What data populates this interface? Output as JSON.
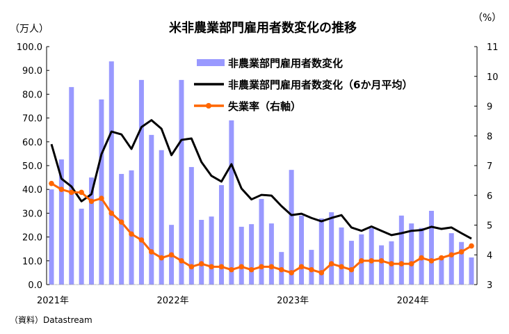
{
  "chart_data": {
    "type": "bar+line",
    "title": "米非農業部門雇用者数変化の推移",
    "left_unit": "（万人）",
    "right_unit": "（%）",
    "source": "（資料）Datastream",
    "ylim_left": [
      0,
      100
    ],
    "ylim_right": [
      3,
      11
    ],
    "left_ticks": [
      "0.0",
      "10.0",
      "20.0",
      "30.0",
      "40.0",
      "50.0",
      "60.0",
      "70.0",
      "80.0",
      "90.0",
      "100.0"
    ],
    "right_ticks": [
      "3",
      "4",
      "5",
      "6",
      "7",
      "8",
      "9",
      "10",
      "11"
    ],
    "x_labels": [
      {
        "index": 0,
        "label": "2021年"
      },
      {
        "index": 12,
        "label": "2022年"
      },
      {
        "index": 24,
        "label": "2023年"
      },
      {
        "index": 36,
        "label": "2024年"
      }
    ],
    "x_range": "2021-01 to 2024-07 (monthly)",
    "legend_position": "top-center",
    "series": [
      {
        "name": "非農業部門雇用者数変化",
        "type": "bar",
        "axis": "left",
        "color": "#9999ff",
        "values": [
          40.0,
          52.6,
          83.0,
          31.9,
          45.0,
          77.8,
          93.8,
          46.5,
          48.0,
          86.0,
          62.9,
          56.5,
          25.1,
          86.0,
          49.4,
          27.2,
          28.6,
          41.8,
          69.0,
          24.3,
          25.4,
          36.0,
          25.7,
          13.7,
          48.2,
          29.0,
          14.6,
          27.8,
          30.4,
          24.0,
          18.4,
          21.1,
          23.7,
          16.5,
          18.2,
          29.0,
          25.7,
          23.8,
          31.0,
          12.0,
          21.6,
          17.9,
          11.4
        ]
      },
      {
        "name": "非農業部門雇用者数変化（6か月平均）",
        "type": "line",
        "axis": "left",
        "color": "#000000",
        "values": [
          59.0,
          44.5,
          41.2,
          35.0,
          38.0,
          54.8,
          64.3,
          63.1,
          57.0,
          66.2,
          69.1,
          65.5,
          54.4,
          60.8,
          61.4,
          51.5,
          45.7,
          43.3,
          50.6,
          40.4,
          35.8,
          37.7,
          37.4,
          33.0,
          29.2,
          29.8,
          28.0,
          26.6,
          28.0,
          29.2,
          24.0,
          22.6,
          24.4,
          22.6,
          20.8,
          21.6,
          22.6,
          22.9,
          24.3,
          23.4,
          24.0,
          21.6,
          19.3
        ]
      },
      {
        "name": "失業率（右軸）",
        "type": "line-markers",
        "axis": "right",
        "color": "#ff6600",
        "values": [
          6.4,
          6.2,
          6.1,
          6.1,
          5.8,
          5.9,
          5.4,
          5.1,
          4.7,
          4.5,
          4.1,
          3.9,
          4.0,
          3.8,
          3.6,
          3.7,
          3.6,
          3.6,
          3.5,
          3.6,
          3.5,
          3.6,
          3.6,
          3.5,
          3.4,
          3.6,
          3.5,
          3.4,
          3.7,
          3.6,
          3.5,
          3.8,
          3.8,
          3.8,
          3.7,
          3.7,
          3.7,
          3.9,
          3.8,
          3.9,
          4.0,
          4.1,
          4.3
        ]
      }
    ]
  }
}
